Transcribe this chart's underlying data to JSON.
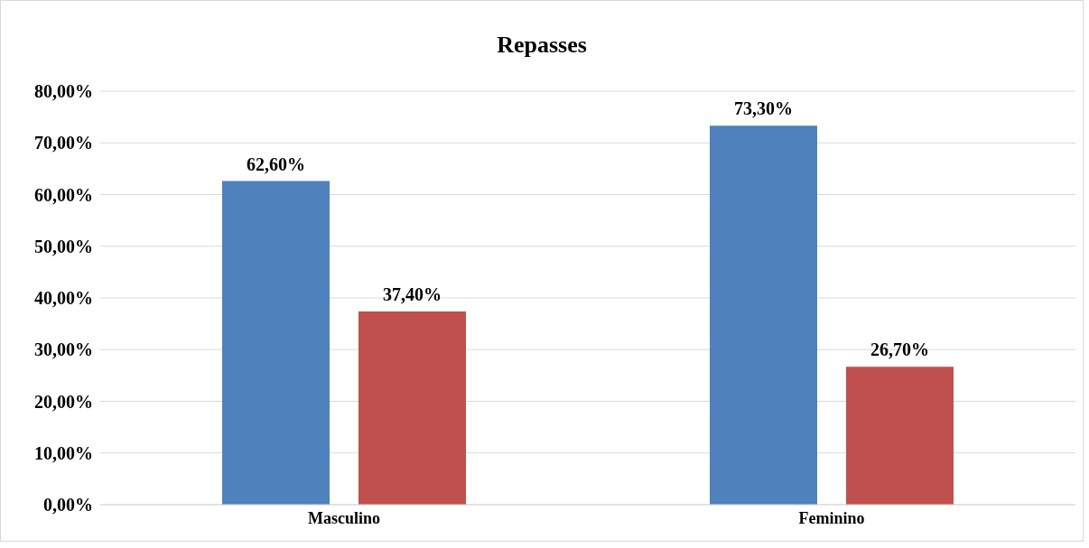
{
  "chart_data": {
    "type": "bar",
    "title": "Repasses",
    "categories": [
      "Masculino",
      "Feminino"
    ],
    "series": [
      {
        "color": "#4f81bd",
        "values": [
          62.6,
          73.3
        ],
        "value_labels": [
          "62,60%",
          "73,30%"
        ]
      },
      {
        "color": "#c0504d",
        "values": [
          37.4,
          26.7
        ],
        "value_labels": [
          "37,40%",
          "26,70%"
        ]
      }
    ],
    "ylim": [
      0,
      80
    ],
    "yticks": [
      {
        "value": 0,
        "label": "0,00%"
      },
      {
        "value": 10,
        "label": "10,00%"
      },
      {
        "value": 20,
        "label": "20,00%"
      },
      {
        "value": 30,
        "label": "30,00%"
      },
      {
        "value": 40,
        "label": "40,00%"
      },
      {
        "value": 50,
        "label": "50,00%"
      },
      {
        "value": 60,
        "label": "60,00%"
      },
      {
        "value": 70,
        "label": "70,00%"
      },
      {
        "value": 80,
        "label": "80,00%"
      }
    ],
    "grid": "y",
    "legend": false
  }
}
